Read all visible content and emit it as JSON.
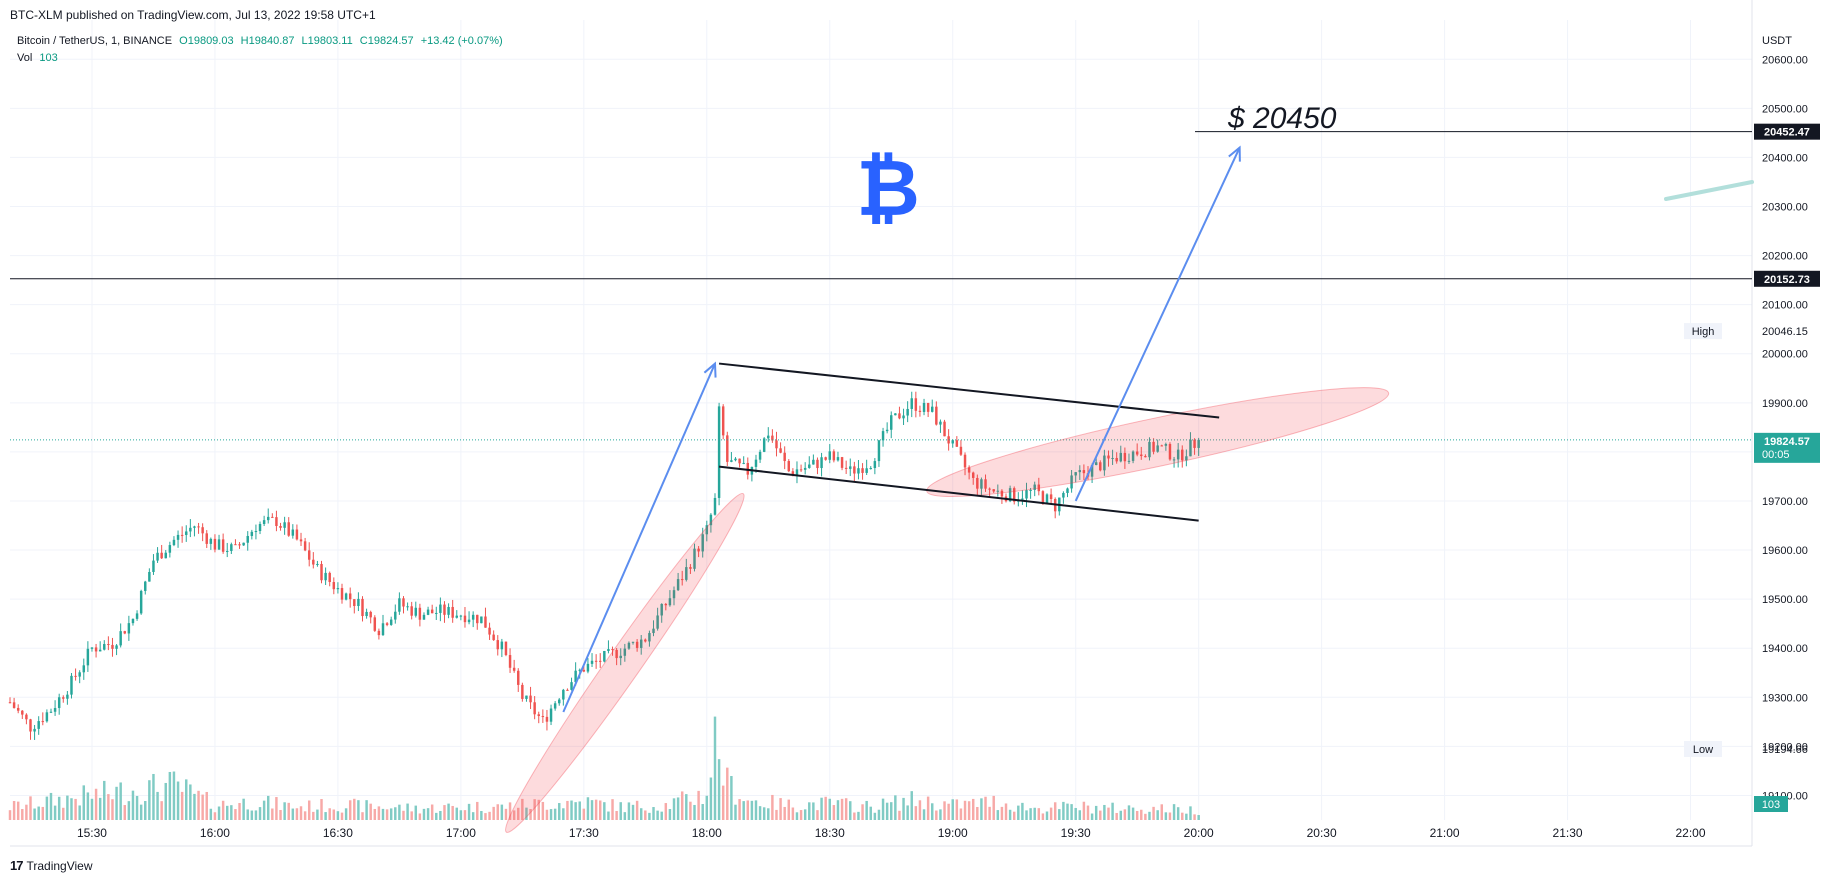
{
  "header": {
    "published": "BTC-XLM published on TradingView.com, Jul 13, 2022 19:58 UTC+1",
    "symbol": "Bitcoin / TetherUS, 1, BINANCE",
    "open": "O19809.03",
    "high": "H19840.87",
    "low": "L19803.11",
    "close": "C19824.57",
    "change": "+13.42 (+0.07%)",
    "vol_label": "Vol",
    "vol_value": "103"
  },
  "footer": {
    "brand": "TradingView",
    "logo": "17"
  },
  "chart_data": {
    "type": "candlestick",
    "symbol": "BTCUSDT",
    "interval": "1",
    "currency": "USDT",
    "y_axis": {
      "range": [
        19050,
        20680
      ],
      "ticks": [
        19100,
        19200,
        19300,
        19400,
        19500,
        19600,
        19700,
        19800,
        19900,
        20000,
        20100,
        20200,
        20300,
        20400,
        20500,
        20600
      ],
      "tick_labels": [
        "19100.00",
        "19200.00",
        "19300.00",
        "19400.00",
        "19500.00",
        "19600.00",
        "19700.00",
        "19800.00",
        "19900.00",
        "20000.00",
        "20100.00",
        "20200.00",
        "20300.00",
        "20400.00",
        "20500.00",
        "20600.00"
      ]
    },
    "x_axis": {
      "range_minutes": [
        910,
        1335
      ],
      "ticks": [
        930,
        960,
        990,
        1020,
        1050,
        1080,
        1110,
        1140,
        1170,
        1200,
        1230,
        1260,
        1290,
        1320
      ],
      "tick_labels": [
        "15:30",
        "16:00",
        "16:30",
        "17:00",
        "17:30",
        "18:00",
        "18:30",
        "19:00",
        "19:30",
        "20:00",
        "20:30",
        "21:00",
        "21:30",
        "22:00"
      ]
    },
    "price_path": [
      [
        910,
        19290
      ],
      [
        915,
        19240
      ],
      [
        920,
        19275
      ],
      [
        925,
        19330
      ],
      [
        930,
        19400
      ],
      [
        935,
        19410
      ],
      [
        940,
        19460
      ],
      [
        945,
        19580
      ],
      [
        950,
        19620
      ],
      [
        955,
        19650
      ],
      [
        960,
        19610
      ],
      [
        965,
        19600
      ],
      [
        970,
        19650
      ],
      [
        975,
        19660
      ],
      [
        980,
        19620
      ],
      [
        985,
        19560
      ],
      [
        990,
        19520
      ],
      [
        995,
        19490
      ],
      [
        1000,
        19440
      ],
      [
        1005,
        19490
      ],
      [
        1010,
        19470
      ],
      [
        1015,
        19475
      ],
      [
        1020,
        19470
      ],
      [
        1025,
        19460
      ],
      [
        1030,
        19400
      ],
      [
        1035,
        19300
      ],
      [
        1040,
        19250
      ],
      [
        1045,
        19320
      ],
      [
        1050,
        19360
      ],
      [
        1055,
        19380
      ],
      [
        1060,
        19400
      ],
      [
        1065,
        19420
      ],
      [
        1070,
        19490
      ],
      [
        1075,
        19560
      ],
      [
        1080,
        19640
      ],
      [
        1082,
        19700
      ],
      [
        1083,
        19880
      ],
      [
        1085,
        19780
      ],
      [
        1090,
        19760
      ],
      [
        1095,
        19840
      ],
      [
        1100,
        19760
      ],
      [
        1105,
        19770
      ],
      [
        1110,
        19790
      ],
      [
        1115,
        19760
      ],
      [
        1120,
        19780
      ],
      [
        1125,
        19860
      ],
      [
        1130,
        19900
      ],
      [
        1135,
        19880
      ],
      [
        1140,
        19810
      ],
      [
        1145,
        19740
      ],
      [
        1150,
        19720
      ],
      [
        1155,
        19710
      ],
      [
        1160,
        19720
      ],
      [
        1165,
        19690
      ],
      [
        1170,
        19750
      ],
      [
        1175,
        19770
      ],
      [
        1180,
        19790
      ],
      [
        1185,
        19800
      ],
      [
        1190,
        19810
      ],
      [
        1195,
        19790
      ],
      [
        1200,
        19824.57
      ]
    ],
    "volume_path": [
      [
        910,
        40
      ],
      [
        930,
        75
      ],
      [
        940,
        90
      ],
      [
        950,
        105
      ],
      [
        960,
        45
      ],
      [
        970,
        55
      ],
      [
        980,
        40
      ],
      [
        990,
        45
      ],
      [
        1000,
        40
      ],
      [
        1010,
        35
      ],
      [
        1020,
        40
      ],
      [
        1030,
        40
      ],
      [
        1040,
        50
      ],
      [
        1050,
        55
      ],
      [
        1060,
        40
      ],
      [
        1070,
        45
      ],
      [
        1080,
        80
      ],
      [
        1082,
        245
      ],
      [
        1085,
        110
      ],
      [
        1090,
        60
      ],
      [
        1100,
        45
      ],
      [
        1110,
        50
      ],
      [
        1120,
        40
      ],
      [
        1130,
        60
      ],
      [
        1140,
        45
      ],
      [
        1150,
        55
      ],
      [
        1160,
        35
      ],
      [
        1170,
        40
      ],
      [
        1180,
        35
      ],
      [
        1190,
        35
      ],
      [
        1200,
        30
      ]
    ],
    "horizontal_lines": [
      {
        "price": 20452.47,
        "label": "20452.47"
      },
      {
        "price": 20152.73,
        "label": "20152.73"
      }
    ],
    "current_price": {
      "price": 19824.57,
      "label": "19824.57",
      "countdown": "00:05",
      "color": "#26a69a"
    },
    "high_marker": {
      "label": "High",
      "value": "20046.15",
      "price": 20046.15
    },
    "low_marker": {
      "label": "Low",
      "value": "19194.66",
      "price": 19194.66
    },
    "volume_badge": "103",
    "annotations": {
      "target_text": "$ 20450",
      "channel_upper": [
        [
          1083,
          19980
        ],
        [
          1205,
          19870
        ]
      ],
      "channel_lower": [
        [
          1083,
          19770
        ],
        [
          1200,
          19660
        ]
      ],
      "arrow_1": [
        [
          1045,
          19270
        ],
        [
          1082,
          19980
        ]
      ],
      "arrow_2": [
        [
          1170,
          19700
        ],
        [
          1210,
          20420
        ]
      ],
      "ellipse_1": {
        "center": [
          1060,
          19370
        ],
        "rx_min": 14,
        "ry_price": 120
      },
      "ellipse_2": {
        "center": [
          1190,
          19820
        ],
        "rx_min": 16,
        "ry_price": 70
      },
      "bitcoin_symbol": "₿"
    },
    "colors": {
      "up": "#26a69a",
      "down": "#ef5350",
      "vol_up": "#80cbc4",
      "vol_down": "#f7a9a7",
      "accent": "#2962ff"
    }
  }
}
